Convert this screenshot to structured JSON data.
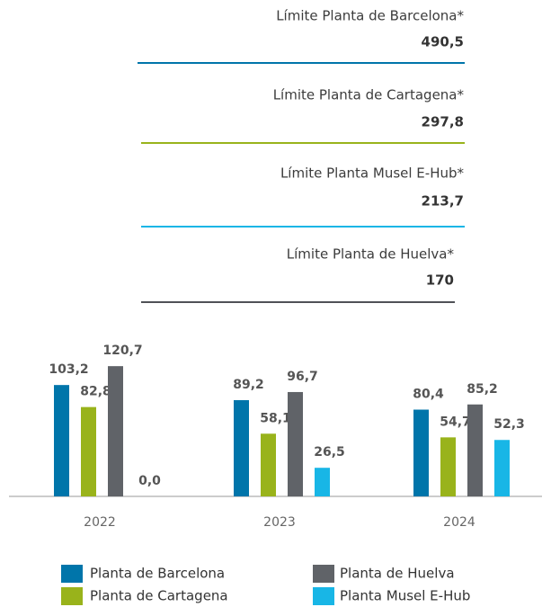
{
  "chart_data": {
    "type": "bar",
    "limits": [
      {
        "label": "Límite Planta de Barcelona*",
        "value": 490.5,
        "value_label": "490,5",
        "color": "#0075aa"
      },
      {
        "label": "Límite Planta de Cartagena*",
        "value": 297.8,
        "value_label": "297,8",
        "color": "#99b31b"
      },
      {
        "label": "Límite Planta Musel E-Hub*",
        "value": 213.7,
        "value_label": "213,7",
        "color": "#18b6e6"
      },
      {
        "label": "Límite Planta de Huelva*",
        "value": 170,
        "color": "#505257"
      }
    ],
    "categories": [
      "2022",
      "2023",
      "2024"
    ],
    "series": [
      {
        "name": "Planta de Barcelona",
        "color": "#0075aa",
        "values": [
          103.2,
          89.2,
          80.4
        ],
        "value_labels": [
          "103,2",
          "89,2",
          "80,4"
        ]
      },
      {
        "name": "Planta de Cartagena",
        "color": "#99b31b",
        "values": [
          82.8,
          58.1,
          54.7
        ],
        "value_labels": [
          "82,8",
          "58,1",
          "54,7"
        ]
      },
      {
        "name": "Planta de Huelva",
        "color": "#606368",
        "values": [
          120.7,
          96.7,
          85.2
        ],
        "value_labels": [
          "120,7",
          "96,7",
          "85,2"
        ]
      },
      {
        "name": "Planta Musel E-Hub",
        "color": "#18b6e6",
        "values": [
          0.0,
          26.5,
          52.3
        ],
        "value_labels": [
          "0,0",
          "26,5",
          "52,3"
        ]
      }
    ]
  }
}
